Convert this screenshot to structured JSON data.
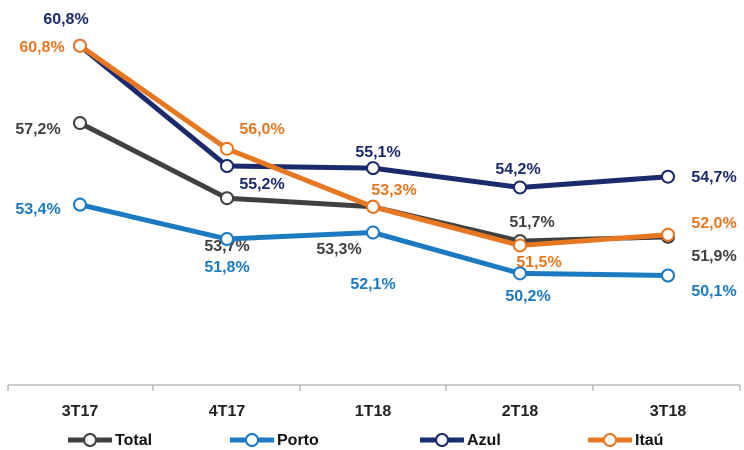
{
  "chart_data": {
    "type": "line",
    "categories": [
      "3T17",
      "4T17",
      "1T18",
      "2T18",
      "3T18"
    ],
    "ylim": [
      45,
      62
    ],
    "series": [
      {
        "name": "Total",
        "color": "#404040",
        "values": [
          57.2,
          53.7,
          53.3,
          51.7,
          51.9
        ],
        "value_labels": [
          "57,2%",
          "53,7%",
          "53,3%",
          "51,7%",
          "51,9%"
        ]
      },
      {
        "name": "Porto",
        "color": "#1b7ac2",
        "values": [
          53.4,
          51.8,
          52.1,
          50.2,
          50.1
        ],
        "value_labels": [
          "53,4%",
          "51,8%",
          "52,1%",
          "50,2%",
          "50,1%"
        ]
      },
      {
        "name": "Azul",
        "color": "#1a2a6c",
        "values": [
          60.8,
          55.2,
          55.1,
          54.2,
          54.7
        ],
        "value_labels": [
          "60,8%",
          "55,2%",
          "55,1%",
          "54,2%",
          "54,7%"
        ]
      },
      {
        "name": "Itaú",
        "color": "#e87722",
        "values": [
          60.8,
          56.0,
          53.3,
          51.5,
          52.0
        ],
        "value_labels": [
          "60,8%",
          "56,0%",
          "53,3%",
          "51,5%",
          "52,0%"
        ]
      }
    ]
  }
}
